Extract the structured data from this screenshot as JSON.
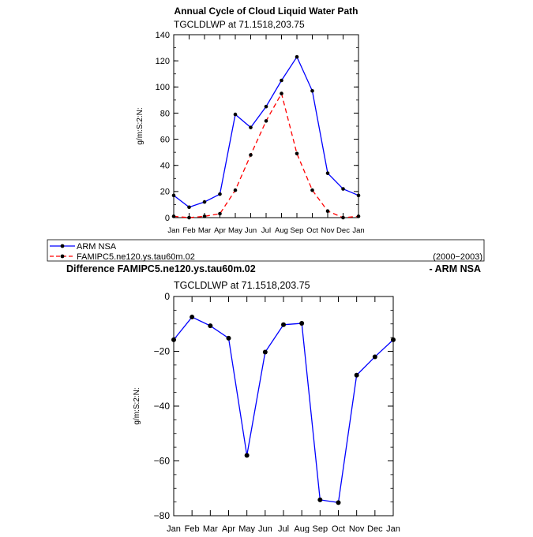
{
  "figure": {
    "title": "Annual Cycle of Cloud Liquid Water Path",
    "variable_label_top": "TGCLDLWP  at  71.1518,203.75",
    "diff_title_left": "Difference FAMIPC5.ne120.ys.tau60m.02",
    "diff_title_right": "- ARM NSA",
    "variable_label_bottom": "TGCLDLWP  at  71.1518,203.75",
    "legend": {
      "entries": [
        "ARM  NSA",
        "FAMIPC5.ne120.ys.tau60m.02"
      ],
      "period": "(2000−2003)"
    }
  },
  "colors": {
    "obs": "#0000ff",
    "model": "#ff0000",
    "axis": "#000000"
  },
  "chart_data": [
    {
      "type": "line",
      "title": "Annual Cycle of Cloud Liquid Water Path",
      "subtitle": "TGCLDLWP  at  71.1518,203.75",
      "xlabel": "",
      "ylabel": "g/m:S:2:N:",
      "categories": [
        "Jan",
        "Feb",
        "Mar",
        "Apr",
        "May",
        "Jun",
        "Jul",
        "Aug",
        "Sep",
        "Oct",
        "Nov",
        "Dec",
        "Jan"
      ],
      "ylim": [
        0,
        140
      ],
      "yticks": [
        0,
        20,
        40,
        60,
        80,
        100,
        120,
        140
      ],
      "series": [
        {
          "name": "ARM  NSA",
          "style": "solid",
          "values": [
            17,
            8,
            12,
            18,
            79,
            69,
            85,
            105,
            123,
            97,
            34,
            22,
            17
          ]
        },
        {
          "name": "FAMIPC5.ne120.ys.tau60m.02",
          "style": "dashed",
          "values": [
            1,
            0,
            1,
            3,
            21,
            48,
            74,
            95,
            49,
            21,
            5,
            0,
            1
          ]
        }
      ]
    },
    {
      "type": "line",
      "title": "Difference FAMIPC5.ne120.ys.tau60m.02 - ARM NSA",
      "subtitle": "TGCLDLWP  at  71.1518,203.75",
      "xlabel": "",
      "ylabel": "g/m:S:2:N:",
      "categories": [
        "Jan",
        "Feb",
        "Mar",
        "Apr",
        "May",
        "Jun",
        "Jul",
        "Aug",
        "Sep",
        "Oct",
        "Nov",
        "Dec",
        "Jan"
      ],
      "ylim": [
        -80,
        0
      ],
      "yticks": [
        0,
        -20,
        -40,
        -60,
        -80
      ],
      "series": [
        {
          "values": [
            -15.8,
            -7.5,
            -10.7,
            -15.2,
            -58,
            -20.3,
            -10.3,
            -9.8,
            -74.2,
            -75.2,
            -28.7,
            -22,
            -15.8
          ]
        }
      ]
    }
  ]
}
